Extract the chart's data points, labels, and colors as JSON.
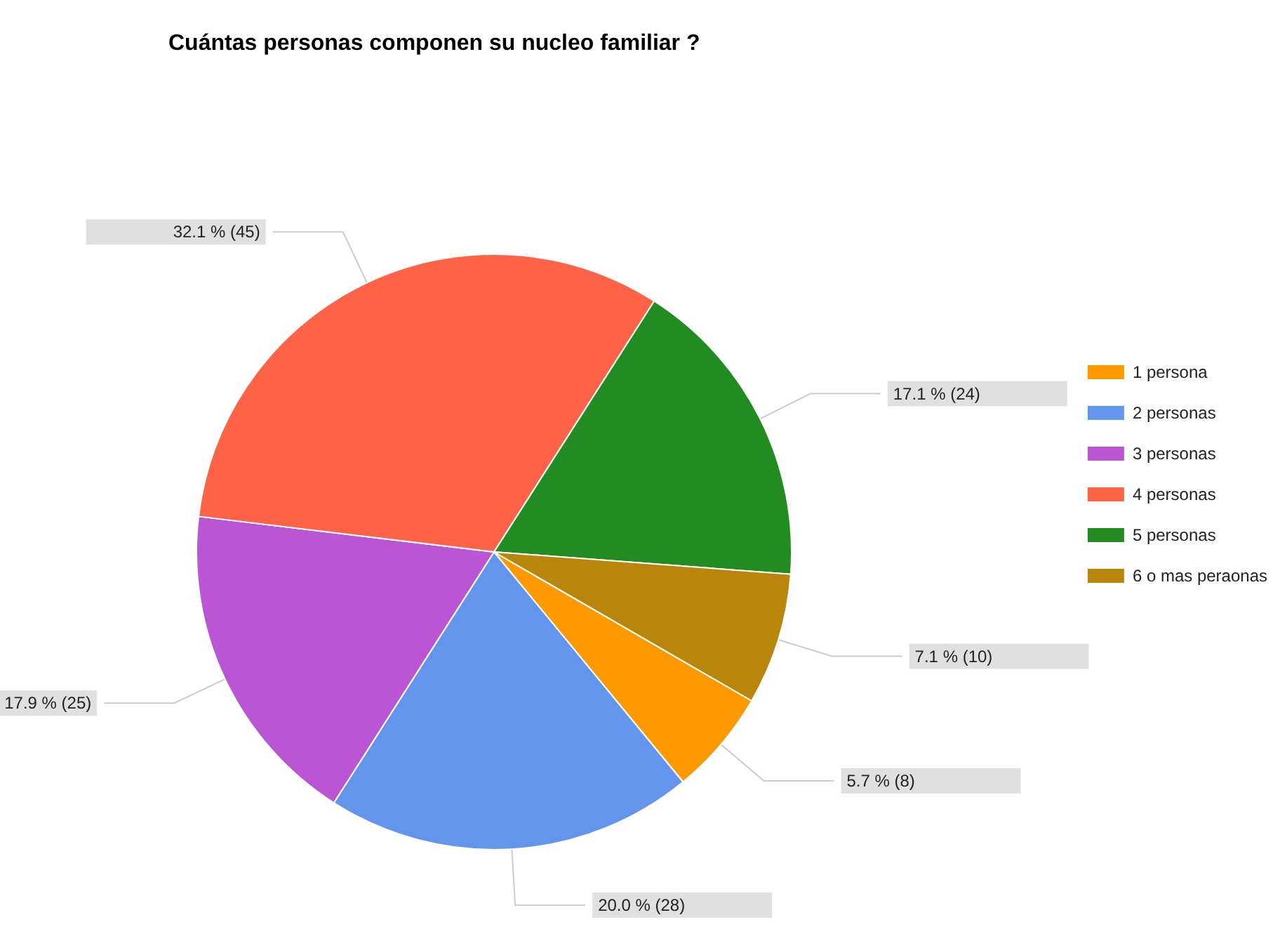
{
  "chart_data": {
    "type": "pie",
    "title": "Cuántas personas componen su nucleo familiar ?",
    "categories": [
      "1 persona",
      "2 personas",
      "3 personas",
      "4 personas",
      "5 personas",
      "6 o mas peraonas"
    ],
    "values": [
      8,
      28,
      25,
      45,
      24,
      10
    ],
    "colors": [
      "#ff9900",
      "#6495ed",
      "#ba55d3",
      "#ff6347",
      "#228b22",
      "#b8860b"
    ],
    "value_labels": [
      "5.7 % (8)",
      "20.0 % (28)",
      "17.9 % (25)",
      "32.1 % (45)",
      "17.1 % (24)",
      "7.1 % (10)"
    ],
    "legend": "right"
  }
}
